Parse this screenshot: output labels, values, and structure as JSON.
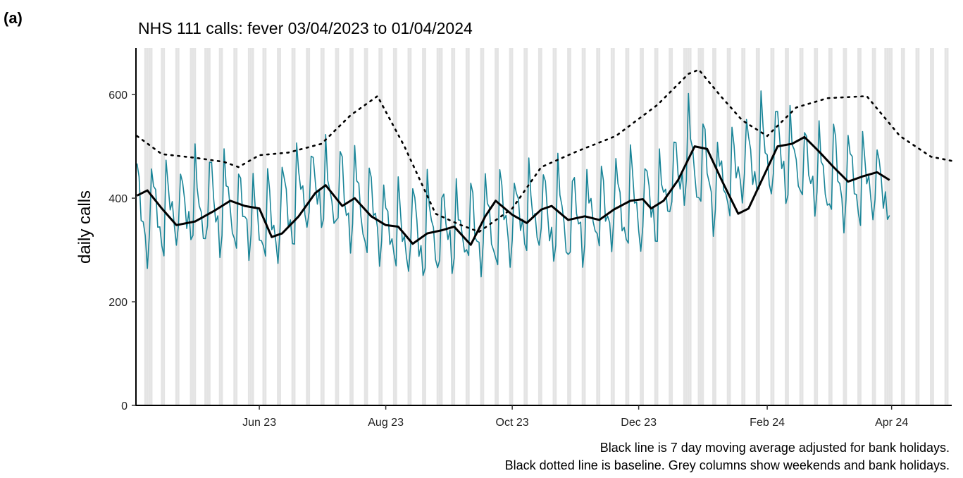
{
  "panel_label": "(a)",
  "caption_lines": [
    "Black line is 7 day moving average adjusted for bank holidays.",
    "Black dotted line is baseline. Grey columns show weekends and bank holidays."
  ],
  "colors": {
    "daily": "#1a8598",
    "moving_average": "#000000",
    "baseline": "#000000",
    "weekend_shading": "#e4e4e4"
  },
  "chart_data": {
    "type": "line",
    "title": "NHS 111 calls: fever 03/04/2023 to 01/04/2024",
    "ylabel": "daily calls",
    "xlabel": "",
    "x_range": [
      "2023-04-03",
      "2024-04-30"
    ],
    "ylim": [
      0,
      690
    ],
    "y_ticks": [
      0,
      200,
      400,
      600
    ],
    "x_ticks": [
      {
        "date": "2023-06-01",
        "label": "Jun 23"
      },
      {
        "date": "2023-08-01",
        "label": "Aug 23"
      },
      {
        "date": "2023-10-01",
        "label": "Oct 23"
      },
      {
        "date": "2023-12-01",
        "label": "Dec 23"
      },
      {
        "date": "2024-02-01",
        "label": "Feb 24"
      },
      {
        "date": "2024-04-01",
        "label": "Apr 24"
      }
    ],
    "grid": false,
    "shaded_columns": "weekends and bank holidays",
    "bank_holidays": [
      "2023-04-07",
      "2023-04-10",
      "2023-05-01",
      "2023-05-08",
      "2023-05-29",
      "2023-08-28",
      "2023-12-25",
      "2023-12-26",
      "2024-01-01",
      "2024-03-29",
      "2024-04-01"
    ],
    "series": [
      {
        "name": "daily",
        "style": "thin-solid",
        "anchors": [
          [
            "2023-04-03",
            360
          ],
          [
            "2023-04-24",
            380
          ],
          [
            "2023-05-15",
            385
          ],
          [
            "2023-06-05",
            345
          ],
          [
            "2023-06-26",
            420
          ],
          [
            "2023-07-17",
            390
          ],
          [
            "2023-08-07",
            330
          ],
          [
            "2023-08-28",
            335
          ],
          [
            "2023-09-18",
            340
          ],
          [
            "2023-10-09",
            370
          ],
          [
            "2023-10-30",
            355
          ],
          [
            "2023-11-20",
            380
          ],
          [
            "2023-12-11",
            390
          ],
          [
            "2023-12-25",
            480
          ],
          [
            "2024-01-08",
            420
          ],
          [
            "2024-01-22",
            470
          ],
          [
            "2024-02-05",
            490
          ],
          [
            "2024-02-26",
            440
          ],
          [
            "2024-03-18",
            430
          ],
          [
            "2024-03-31",
            420
          ]
        ],
        "weekly_pattern_amplitude": [
          95,
          55,
          15,
          -15,
          -30,
          -70,
          -50
        ]
      },
      {
        "name": "7 day moving average",
        "style": "thick-solid",
        "points": [
          [
            "2023-04-03",
            405
          ],
          [
            "2023-04-08",
            415
          ],
          [
            "2023-04-15",
            380
          ],
          [
            "2023-04-22",
            348
          ],
          [
            "2023-05-01",
            355
          ],
          [
            "2023-05-10",
            375
          ],
          [
            "2023-05-18",
            395
          ],
          [
            "2023-05-25",
            385
          ],
          [
            "2023-06-01",
            380
          ],
          [
            "2023-06-07",
            325
          ],
          [
            "2023-06-12",
            332
          ],
          [
            "2023-06-20",
            365
          ],
          [
            "2023-06-28",
            410
          ],
          [
            "2023-07-03",
            425
          ],
          [
            "2023-07-11",
            385
          ],
          [
            "2023-07-17",
            400
          ],
          [
            "2023-07-25",
            365
          ],
          [
            "2023-08-01",
            348
          ],
          [
            "2023-08-07",
            345
          ],
          [
            "2023-08-14",
            312
          ],
          [
            "2023-08-21",
            332
          ],
          [
            "2023-08-28",
            338
          ],
          [
            "2023-09-03",
            345
          ],
          [
            "2023-09-11",
            310
          ],
          [
            "2023-09-18",
            365
          ],
          [
            "2023-09-23",
            395
          ],
          [
            "2023-10-01",
            368
          ],
          [
            "2023-10-08",
            352
          ],
          [
            "2023-10-15",
            378
          ],
          [
            "2023-10-20",
            385
          ],
          [
            "2023-10-28",
            358
          ],
          [
            "2023-11-05",
            365
          ],
          [
            "2023-11-12",
            358
          ],
          [
            "2023-11-19",
            378
          ],
          [
            "2023-11-27",
            395
          ],
          [
            "2023-12-03",
            398
          ],
          [
            "2023-12-07",
            380
          ],
          [
            "2023-12-13",
            395
          ],
          [
            "2023-12-20",
            435
          ],
          [
            "2023-12-28",
            500
          ],
          [
            "2024-01-03",
            495
          ],
          [
            "2024-01-10",
            435
          ],
          [
            "2024-01-18",
            370
          ],
          [
            "2024-01-23",
            380
          ],
          [
            "2024-01-30",
            440
          ],
          [
            "2024-02-06",
            500
          ],
          [
            "2024-02-13",
            505
          ],
          [
            "2024-02-19",
            518
          ],
          [
            "2024-02-26",
            490
          ],
          [
            "2024-03-04",
            460
          ],
          [
            "2024-03-11",
            432
          ],
          [
            "2024-03-18",
            442
          ],
          [
            "2024-03-25",
            450
          ],
          [
            "2024-03-31",
            435
          ]
        ]
      },
      {
        "name": "baseline",
        "style": "dotted",
        "points": [
          [
            "2023-04-03",
            520
          ],
          [
            "2023-04-15",
            485
          ],
          [
            "2023-05-01",
            478
          ],
          [
            "2023-05-15",
            470
          ],
          [
            "2023-05-22",
            460
          ],
          [
            "2023-06-01",
            483
          ],
          [
            "2023-06-15",
            488
          ],
          [
            "2023-07-01",
            505
          ],
          [
            "2023-07-15",
            560
          ],
          [
            "2023-07-28",
            597
          ],
          [
            "2023-08-10",
            500
          ],
          [
            "2023-08-25",
            370
          ],
          [
            "2023-09-05",
            350
          ],
          [
            "2023-09-15",
            335
          ],
          [
            "2023-10-01",
            380
          ],
          [
            "2023-10-15",
            460
          ],
          [
            "2023-11-01",
            490
          ],
          [
            "2023-11-20",
            520
          ],
          [
            "2023-12-10",
            580
          ],
          [
            "2023-12-25",
            640
          ],
          [
            "2023-12-30",
            648
          ],
          [
            "2024-01-10",
            595
          ],
          [
            "2024-01-20",
            550
          ],
          [
            "2024-02-01",
            520
          ],
          [
            "2024-02-15",
            575
          ],
          [
            "2024-03-01",
            593
          ],
          [
            "2024-03-20",
            597
          ],
          [
            "2024-04-05",
            520
          ],
          [
            "2024-04-20",
            480
          ],
          [
            "2024-04-30",
            472
          ]
        ]
      }
    ]
  }
}
